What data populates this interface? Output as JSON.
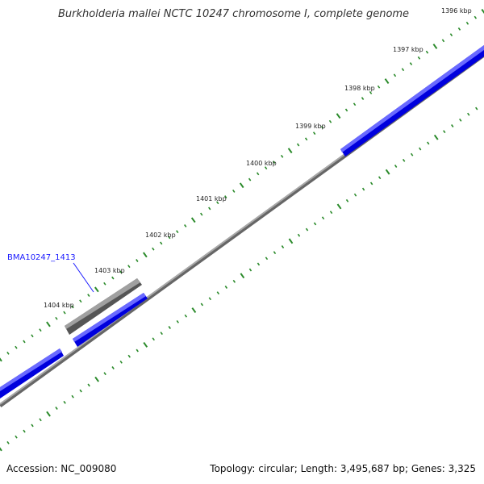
{
  "title": "Burkholderia mallei NCTC 10247 chromosome I, complete genome",
  "footer": {
    "accession_label": "Accession:",
    "accession": "NC_009080",
    "topology_label": "Topology:",
    "topology": "circular",
    "length_label": "Length:",
    "length": "3,495,687 bp",
    "genes_label": "Genes:",
    "genes": "3,325"
  },
  "map": {
    "tick_labels": [
      "1396 kbp",
      "1397 kbp",
      "1398 kbp",
      "1399 kbp",
      "1400 kbp",
      "1401 kbp",
      "1402 kbp",
      "1403 kbp",
      "1404 kbp"
    ],
    "highlighted_gene": "BMA10247_1413",
    "colors": {
      "forward_gene": "#1a1aff",
      "reverse_gene": "#6a6a6a",
      "backbone": "#888888",
      "ticks": "#2a8a2a"
    }
  }
}
